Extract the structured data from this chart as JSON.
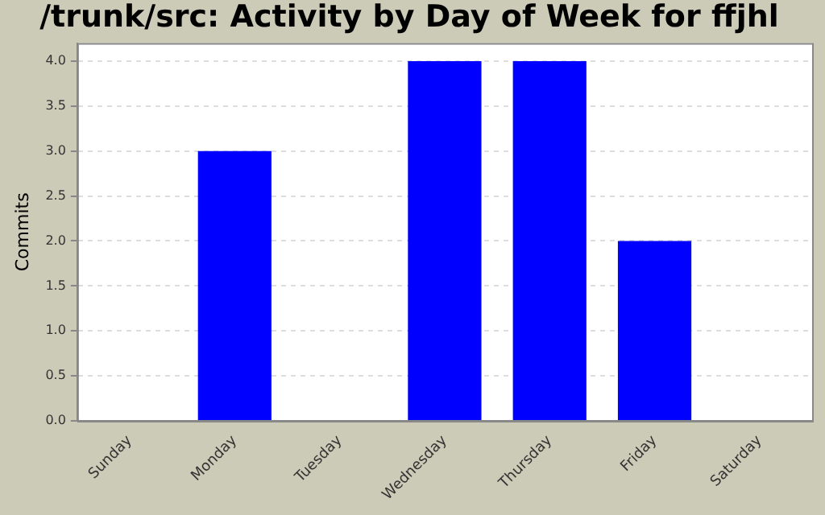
{
  "chart_data": {
    "type": "bar",
    "title": "/trunk/src: Activity by Day of Week for ffjhl",
    "ylabel": "Commits",
    "categories": [
      "Sunday",
      "Monday",
      "Tuesday",
      "Wednesday",
      "Thursday",
      "Friday",
      "Saturday"
    ],
    "values": [
      0,
      3,
      0,
      4,
      4,
      2,
      0
    ],
    "color": "#0000ff",
    "ylim": [
      0,
      4.2
    ],
    "yticks": [
      {
        "value": 0,
        "label": "0.0"
      },
      {
        "value": 0.5,
        "label": "0.5"
      },
      {
        "value": 1,
        "label": "1.0"
      },
      {
        "value": 1.5,
        "label": "1.5"
      },
      {
        "value": 2,
        "label": "2.0"
      },
      {
        "value": 2.5,
        "label": "2.5"
      },
      {
        "value": 3,
        "label": "3.0"
      },
      {
        "value": 3.5,
        "label": "3.5"
      },
      {
        "value": 4,
        "label": "4.0"
      }
    ],
    "grid": "y",
    "legend": false
  }
}
